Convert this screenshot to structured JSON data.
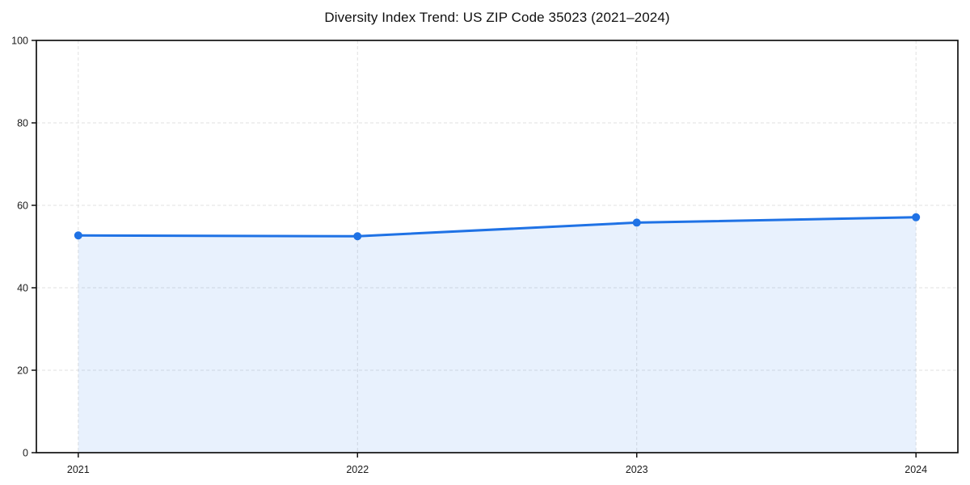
{
  "page": {
    "background_color": "#ffffff"
  },
  "chart_data": {
    "type": "area",
    "title": "Diversity Index Trend: US ZIP Code 35023 (2021–2024)",
    "x": [
      2021,
      2022,
      2023,
      2024
    ],
    "values": [
      52.7,
      52.5,
      55.8,
      57.1
    ],
    "xlabel": "",
    "ylabel": "",
    "ylim": [
      0,
      100
    ],
    "yticks": [
      0,
      20,
      40,
      60,
      80,
      100
    ],
    "xtick_labels": [
      "2021",
      "2022",
      "2023",
      "2024"
    ],
    "grid": "on-dashed-both-axes",
    "legend": "none",
    "line_color": "#1f72e5",
    "marker_color": "#1f72e5",
    "fill_color_rgba": "26,115,232,0.10",
    "gridline_color": "#e0e0e0",
    "spine_color": "#111111",
    "tick_label_color": "#1a1a1a"
  }
}
